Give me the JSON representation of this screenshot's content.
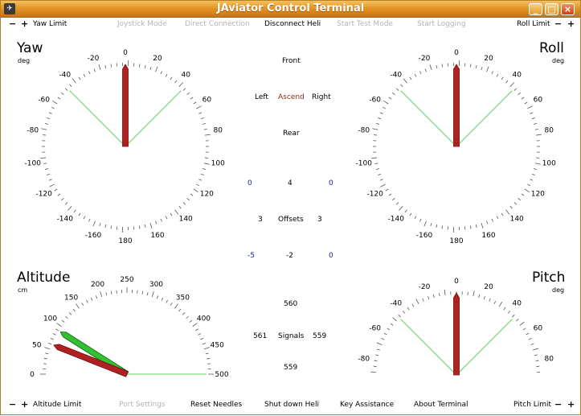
{
  "window": {
    "title": "JAviator Control Terminal",
    "minimize": "_",
    "maximize": "□",
    "close": "×"
  },
  "top_bar": {
    "minus": "−",
    "plus": "+",
    "yaw_limit": "Yaw Limit",
    "joystick_mode": "Joystick Mode",
    "direct_connection": "Direct Connection",
    "disconnect_heli": "Disconnect Heli",
    "start_test_mode": "Start Test Mode",
    "start_logging": "Start Logging",
    "roll_limit": "Roll Limit"
  },
  "bottom_bar": {
    "minus": "−",
    "plus": "+",
    "altitude_limit": "Altitude Limit",
    "port_settings": "Port Settings",
    "reset_needles": "Reset Needles",
    "shut_down_heli": "Shut down Heli",
    "key_assistance": "Key Assistance",
    "about_terminal": "About Terminal",
    "pitch_limit": "Pitch Limit"
  },
  "gauges": {
    "yaw": {
      "title": "Yaw",
      "unit": "deg",
      "needle_deg": 0,
      "limit_deg": 45,
      "ticks": [
        "-20",
        "0",
        "20",
        "40",
        "60",
        "80",
        "100",
        "120",
        "140",
        "160",
        "180",
        "-160",
        "-140",
        "-120",
        "-100",
        "-80",
        "-60",
        "-40"
      ]
    },
    "roll": {
      "title": "Roll",
      "unit": "deg",
      "needle_deg": 0,
      "limit_deg": 45,
      "ticks": [
        "-20",
        "0",
        "20",
        "40",
        "60",
        "80",
        "100",
        "120",
        "140",
        "160",
        "180",
        "-160",
        "-140",
        "-120",
        "-100",
        "-80",
        "-60",
        "-40"
      ]
    },
    "altitude": {
      "title": "Altitude",
      "unit": "cm",
      "ticks": [
        "0",
        "50",
        "100",
        "150",
        "200",
        "250",
        "300",
        "350",
        "400",
        "450",
        "500"
      ],
      "red_needle_cm": 60,
      "green_needle_cm": 90,
      "limit_cm": 500
    },
    "pitch": {
      "title": "Pitch",
      "unit": "deg",
      "needle_deg": 0,
      "limit_deg": 45,
      "ticks": [
        "-80",
        "-60",
        "-40",
        "-20",
        "0",
        "20",
        "40",
        "60",
        "80"
      ]
    }
  },
  "center": {
    "front": "Front",
    "left": "Left",
    "ascend": "Ascend",
    "right": "Right",
    "rear": "Rear",
    "offsets": {
      "label": "Offsets",
      "top": "4",
      "left": "3",
      "right": "3",
      "bottom": "-2",
      "top_left": "0",
      "top_right": "0",
      "bottom_left": "-5",
      "bottom_right": "0"
    },
    "signals": {
      "label": "Signals",
      "top": "560",
      "left": "561",
      "right": "559",
      "bottom": "559"
    }
  },
  "colors": {
    "needle_red": "#b02020",
    "needle_green": "#30c030",
    "limit_line": "#5cd05c",
    "ascend": "#8b2a1a",
    "blue": "#1a1a9a"
  }
}
